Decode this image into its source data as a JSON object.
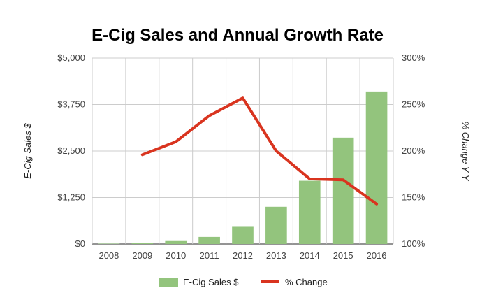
{
  "chart_data": {
    "type": "bar",
    "title": "E-Cig Sales and Annual Growth Rate",
    "categories": [
      "2008",
      "2009",
      "2010",
      "2011",
      "2012",
      "2013",
      "2014",
      "2015",
      "2016"
    ],
    "ylabel": "E-Cig Sales $",
    "y2label": "% Change Y-Y",
    "ylim": [
      0,
      5000
    ],
    "y2lim": [
      100,
      300
    ],
    "y_ticks": [
      "$0",
      "$1,250",
      "$2,500",
      "$3,750",
      "$5,000"
    ],
    "y2_ticks": [
      "100%",
      "150%",
      "200%",
      "250%",
      "300%"
    ],
    "grid": true,
    "legend_position": "bottom",
    "series": [
      {
        "name": "E-Cig Sales $",
        "type": "bar",
        "color": "#93c47d",
        "values": [
          10,
          25,
          80,
          190,
          480,
          1000,
          1700,
          2860,
          4100
        ]
      },
      {
        "name": "% Change",
        "type": "line",
        "axis": "right",
        "color": "#d9341f",
        "values": [
          null,
          196,
          210,
          238,
          257,
          200,
          170,
          169,
          143
        ]
      }
    ]
  }
}
